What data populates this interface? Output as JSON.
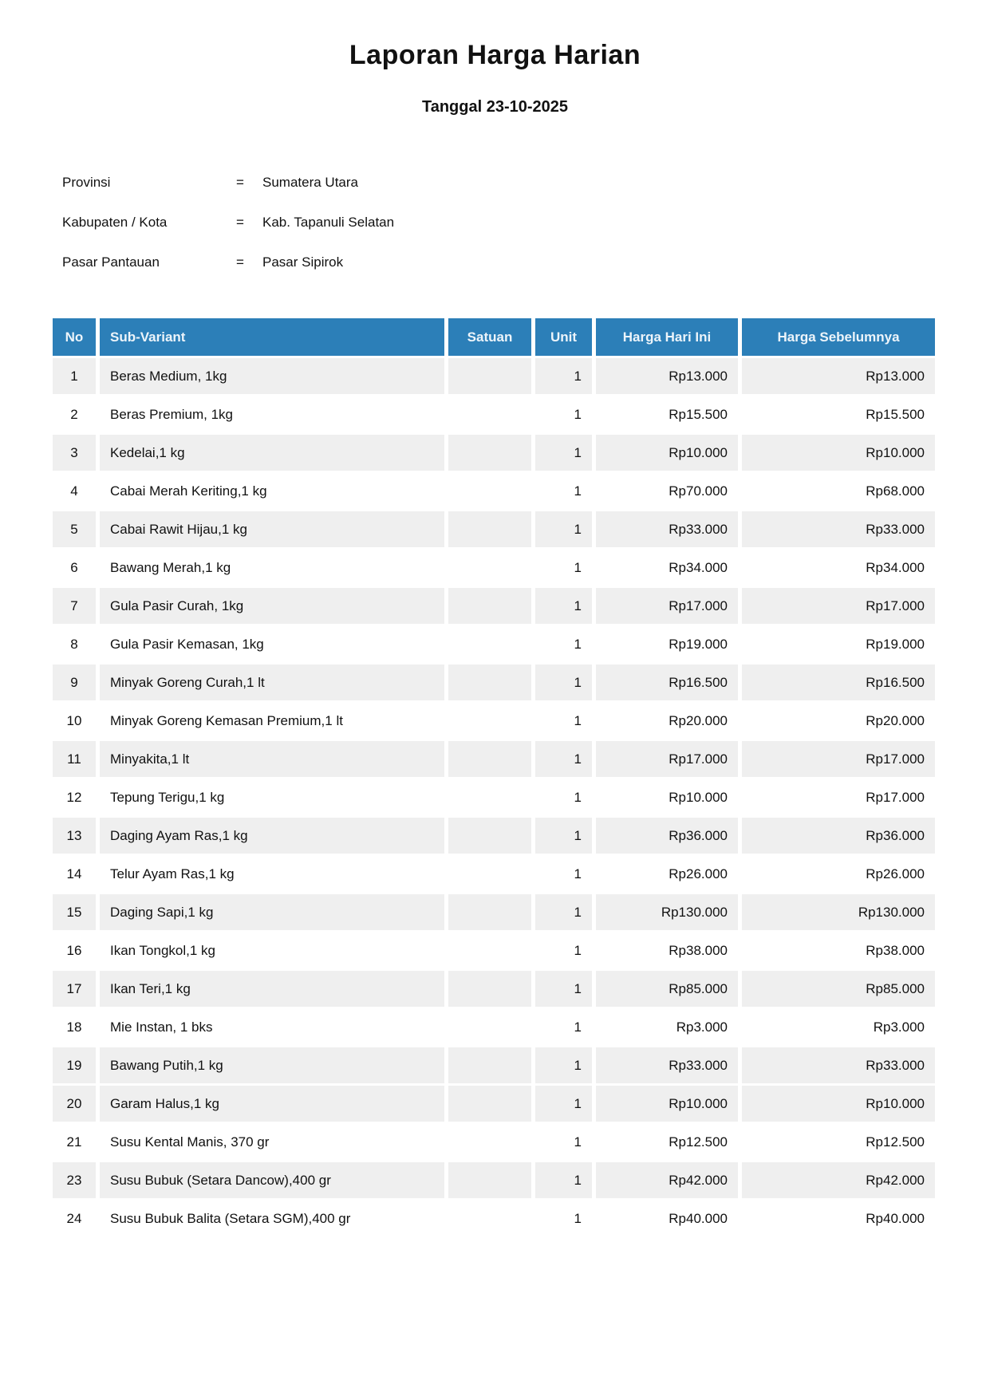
{
  "page": {
    "title": "Laporan Harga Harian",
    "subtitle": "Tanggal 23-10-2025"
  },
  "info": {
    "separator": "=",
    "rows": [
      {
        "label": "Provinsi",
        "value": "Sumatera Utara"
      },
      {
        "label": "Kabupaten / Kota",
        "value": "Kab. Tapanuli Selatan"
      },
      {
        "label": "Pasar Pantauan",
        "value": "Pasar Sipirok"
      }
    ]
  },
  "colors": {
    "header_bg": "#2C7FB8",
    "header_text": "#ECF4FA",
    "row_stripe": "#EFEFEF",
    "body_text": "#111111"
  },
  "table": {
    "columns": [
      "No",
      "Sub-Variant",
      "Satuan",
      "Unit",
      "Harga Hari Ini",
      "Harga Sebelumnya"
    ],
    "rows": [
      {
        "no": "1",
        "sub_variant": "Beras Medium, 1kg",
        "satuan": "",
        "unit": "1",
        "harga_hari_ini": "Rp13.000",
        "harga_sebelumnya": "Rp13.000",
        "shaded": true
      },
      {
        "no": "2",
        "sub_variant": "Beras Premium, 1kg",
        "satuan": "",
        "unit": "1",
        "harga_hari_ini": "Rp15.500",
        "harga_sebelumnya": "Rp15.500",
        "shaded": false
      },
      {
        "no": "3",
        "sub_variant": "Kedelai,1 kg",
        "satuan": "",
        "unit": "1",
        "harga_hari_ini": "Rp10.000",
        "harga_sebelumnya": "Rp10.000",
        "shaded": true
      },
      {
        "no": "4",
        "sub_variant": "Cabai Merah Keriting,1 kg",
        "satuan": "",
        "unit": "1",
        "harga_hari_ini": "Rp70.000",
        "harga_sebelumnya": "Rp68.000",
        "shaded": false
      },
      {
        "no": "5",
        "sub_variant": "Cabai Rawit Hijau,1 kg",
        "satuan": "",
        "unit": "1",
        "harga_hari_ini": "Rp33.000",
        "harga_sebelumnya": "Rp33.000",
        "shaded": true
      },
      {
        "no": "6",
        "sub_variant": "Bawang Merah,1 kg",
        "satuan": "",
        "unit": "1",
        "harga_hari_ini": "Rp34.000",
        "harga_sebelumnya": "Rp34.000",
        "shaded": false
      },
      {
        "no": "7",
        "sub_variant": "Gula Pasir Curah, 1kg",
        "satuan": "",
        "unit": "1",
        "harga_hari_ini": "Rp17.000",
        "harga_sebelumnya": "Rp17.000",
        "shaded": true
      },
      {
        "no": "8",
        "sub_variant": "Gula Pasir Kemasan, 1kg",
        "satuan": "",
        "unit": "1",
        "harga_hari_ini": "Rp19.000",
        "harga_sebelumnya": "Rp19.000",
        "shaded": false
      },
      {
        "no": "9",
        "sub_variant": "Minyak Goreng Curah,1 lt",
        "satuan": "",
        "unit": "1",
        "harga_hari_ini": "Rp16.500",
        "harga_sebelumnya": "Rp16.500",
        "shaded": true
      },
      {
        "no": "10",
        "sub_variant": "Minyak Goreng Kemasan Premium,1 lt",
        "satuan": "",
        "unit": "1",
        "harga_hari_ini": "Rp20.000",
        "harga_sebelumnya": "Rp20.000",
        "shaded": false
      },
      {
        "no": "11",
        "sub_variant": "Minyakita,1 lt",
        "satuan": "",
        "unit": "1",
        "harga_hari_ini": "Rp17.000",
        "harga_sebelumnya": "Rp17.000",
        "shaded": true
      },
      {
        "no": "12",
        "sub_variant": "Tepung Terigu,1 kg",
        "satuan": "",
        "unit": "1",
        "harga_hari_ini": "Rp10.000",
        "harga_sebelumnya": "Rp17.000",
        "shaded": false
      },
      {
        "no": "13",
        "sub_variant": "Daging Ayam Ras,1 kg",
        "satuan": "",
        "unit": "1",
        "harga_hari_ini": "Rp36.000",
        "harga_sebelumnya": "Rp36.000",
        "shaded": true
      },
      {
        "no": "14",
        "sub_variant": "Telur Ayam Ras,1 kg",
        "satuan": "",
        "unit": "1",
        "harga_hari_ini": "Rp26.000",
        "harga_sebelumnya": "Rp26.000",
        "shaded": false
      },
      {
        "no": "15",
        "sub_variant": "Daging Sapi,1 kg",
        "satuan": "",
        "unit": "1",
        "harga_hari_ini": "Rp130.000",
        "harga_sebelumnya": "Rp130.000",
        "shaded": true
      },
      {
        "no": "16",
        "sub_variant": "Ikan Tongkol,1 kg",
        "satuan": "",
        "unit": "1",
        "harga_hari_ini": "Rp38.000",
        "harga_sebelumnya": "Rp38.000",
        "shaded": false
      },
      {
        "no": "17",
        "sub_variant": "Ikan Teri,1 kg",
        "satuan": "",
        "unit": "1",
        "harga_hari_ini": "Rp85.000",
        "harga_sebelumnya": "Rp85.000",
        "shaded": true
      },
      {
        "no": "18",
        "sub_variant": "Mie Instan, 1 bks",
        "satuan": "",
        "unit": "1",
        "harga_hari_ini": "Rp3.000",
        "harga_sebelumnya": "Rp3.000",
        "shaded": false
      },
      {
        "no": "19",
        "sub_variant": "Bawang Putih,1 kg",
        "satuan": "",
        "unit": "1",
        "harga_hari_ini": "Rp33.000",
        "harga_sebelumnya": "Rp33.000",
        "shaded": true
      },
      {
        "no": "20",
        "sub_variant": "Garam Halus,1 kg",
        "satuan": "",
        "unit": "1",
        "harga_hari_ini": "Rp10.000",
        "harga_sebelumnya": "Rp10.000",
        "shaded": true
      },
      {
        "no": "21",
        "sub_variant": "Susu Kental Manis, 370 gr",
        "satuan": "",
        "unit": "1",
        "harga_hari_ini": "Rp12.500",
        "harga_sebelumnya": "Rp12.500",
        "shaded": false
      },
      {
        "no": "23",
        "sub_variant": "Susu Bubuk (Setara Dancow),400 gr",
        "satuan": "",
        "unit": "1",
        "harga_hari_ini": "Rp42.000",
        "harga_sebelumnya": "Rp42.000",
        "shaded": true
      },
      {
        "no": "24",
        "sub_variant": "Susu Bubuk Balita (Setara SGM),400 gr",
        "satuan": "",
        "unit": "1",
        "harga_hari_ini": "Rp40.000",
        "harga_sebelumnya": "Rp40.000",
        "shaded": false
      }
    ]
  }
}
